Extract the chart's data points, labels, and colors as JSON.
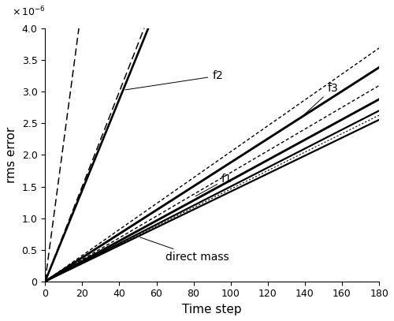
{
  "xlabel": "Time step",
  "ylabel": "rms error",
  "xlim": [
    0,
    180
  ],
  "ylim": [
    0,
    4e-06
  ],
  "yticks": [
    0,
    5e-07,
    1e-06,
    1.5e-06,
    2e-06,
    2.5e-06,
    3e-06,
    3.5e-06,
    4e-06
  ],
  "xticks": [
    0,
    20,
    40,
    60,
    80,
    100,
    120,
    140,
    160,
    180
  ],
  "n_steps": 181,
  "f2_mass_slope": 7.2e-08,
  "f2_number_slope": 7.5e-08,
  "f2_steep_slope": 2.2e-07,
  "f3_mass_slope": 1.88e-08,
  "f3_number_slope": 2.05e-08,
  "f1_mass_slope": 1.6e-08,
  "f1_number_slope": 1.72e-08,
  "dm_solid1_slope": 1.42e-08,
  "dm_solid2_slope": 1.5e-08,
  "dm_noisy_slope": 1.46e-08,
  "noise_scale": 1.2e-10,
  "figsize": [
    5.0,
    4.07
  ],
  "dpi": 100
}
